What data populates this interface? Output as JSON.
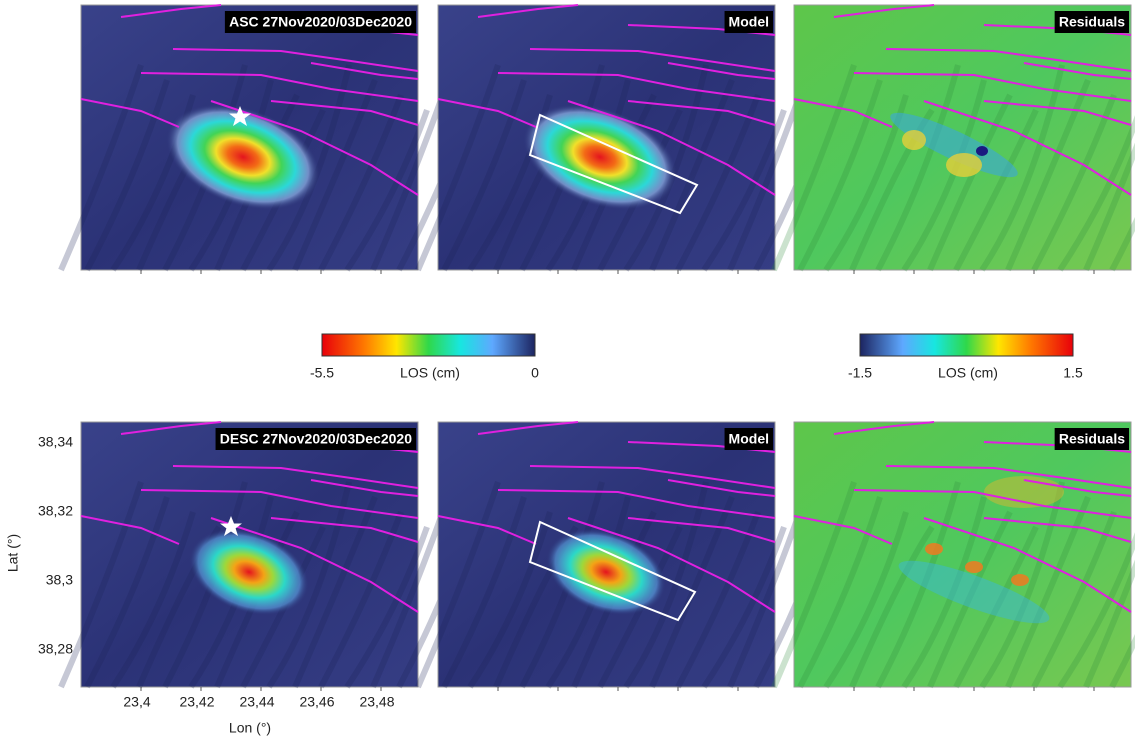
{
  "panels": [
    {
      "label": "ASC 27Nov2020/03Dec2020"
    },
    {
      "label": "Model"
    },
    {
      "label": "Residuals"
    },
    {
      "label": "DESC 27Nov2020/03Dec2020"
    },
    {
      "label": "Model"
    },
    {
      "label": "Residuals"
    }
  ],
  "colorbars": [
    {
      "min": "-5.5",
      "title": "LOS (cm)",
      "max": "0"
    },
    {
      "min": "-1.5",
      "title": "LOS (cm)",
      "max": "1.5"
    }
  ],
  "axes": {
    "x_title": "Lon (°)",
    "y_title": "Lat (°)",
    "x_ticks": [
      "23,4",
      "23,42",
      "23,44",
      "23,46",
      "23,48"
    ],
    "y_ticks": [
      "38,34",
      "38,32",
      "38,3",
      "38,28"
    ]
  }
}
